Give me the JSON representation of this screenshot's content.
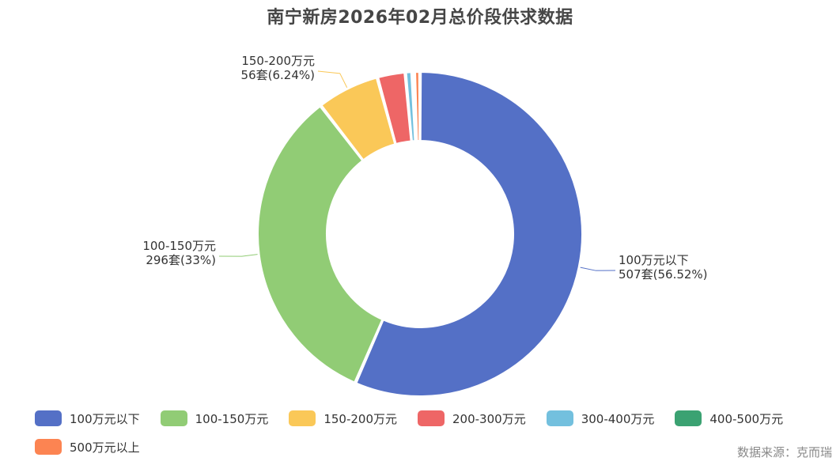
{
  "chart_data": {
    "type": "pie",
    "title": "南宁新房2026年02月总价段供求数据",
    "categories": [
      "100万元以下",
      "100-150万元",
      "150-200万元",
      "200-300万元",
      "300-400万元",
      "400-500万元",
      "500万元以上"
    ],
    "values": [
      507,
      296,
      56,
      25,
      6,
      2,
      5
    ],
    "colors": [
      "#5470c6",
      "#91cc75",
      "#fac858",
      "#ee6666",
      "#73c0de",
      "#3ba272",
      "#fc8452"
    ],
    "data_labels": [
      {
        "category": "100万元以下",
        "name": "100万元以下",
        "value_text": "507套(56.52%)"
      },
      {
        "category": "100-150万元",
        "name": "100-150万元",
        "value_text": "296套(33%)"
      },
      {
        "category": "150-200万元",
        "name": "150-200万元",
        "value_text": "56套(6.24%)"
      }
    ],
    "legend_placement": "bottom",
    "donut": true
  },
  "footer": {
    "source": "数据来源：克而瑞"
  }
}
